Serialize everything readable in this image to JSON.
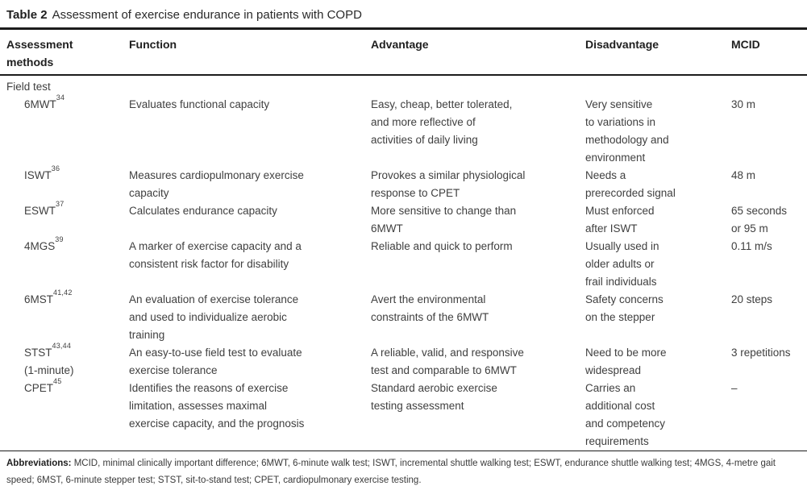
{
  "title": {
    "label": "Table 2",
    "text": "Assessment of exercise endurance in patients with COPD"
  },
  "colors": {
    "text": "#3f3f3f",
    "heading": "#1f1f1f",
    "rule": "#1c1c1c",
    "background": "#ffffff"
  },
  "table": {
    "columns": [
      {
        "id": "assessment-methods",
        "lines": [
          "Assessment",
          "methods"
        ]
      },
      {
        "id": "function",
        "lines": [
          "Function"
        ]
      },
      {
        "id": "advantage",
        "lines": [
          "Advantage"
        ]
      },
      {
        "id": "disadvantage",
        "lines": [
          "Disadvantage"
        ]
      },
      {
        "id": "mcid",
        "lines": [
          "MCID"
        ]
      }
    ],
    "section": {
      "label": "Field test"
    },
    "rows": [
      {
        "method": {
          "name": "6MWT",
          "ref": "34",
          "extra": ""
        },
        "function": [
          "Evaluates functional capacity"
        ],
        "advantage": [
          "Easy, cheap, better tolerated,",
          "and more reflective of",
          "activities of daily living"
        ],
        "disadvantage": [
          "Very sensitive",
          "to variations in",
          "methodology and",
          "environment"
        ],
        "mcid": [
          "30 m"
        ]
      },
      {
        "method": {
          "name": "ISWT",
          "ref": "36",
          "extra": ""
        },
        "function": [
          "Measures cardiopulmonary exercise",
          "capacity"
        ],
        "advantage": [
          "Provokes a similar physiological",
          "response to CPET"
        ],
        "disadvantage": [
          "Needs a",
          "prerecorded signal"
        ],
        "mcid": [
          "48 m"
        ]
      },
      {
        "method": {
          "name": "ESWT",
          "ref": "37",
          "extra": ""
        },
        "function": [
          "Calculates endurance capacity"
        ],
        "advantage": [
          "More sensitive to change than",
          "6MWT"
        ],
        "disadvantage": [
          "Must enforced",
          "after ISWT"
        ],
        "mcid": [
          "65 seconds",
          "or 95 m"
        ]
      },
      {
        "method": {
          "name": "4MGS",
          "ref": "39",
          "extra": ""
        },
        "function": [
          "A marker of exercise capacity and a",
          "consistent risk factor for disability"
        ],
        "advantage": [
          "Reliable and quick to perform"
        ],
        "disadvantage": [
          "Usually used in",
          "older adults or",
          "frail individuals"
        ],
        "mcid": [
          "0.11 m/s"
        ]
      },
      {
        "method": {
          "name": "6MST",
          "ref": "41,42",
          "extra": ""
        },
        "function": [
          "An evaluation of exercise tolerance",
          "and used to individualize aerobic",
          "training"
        ],
        "advantage": [
          "Avert the environmental",
          "constraints of the 6MWT"
        ],
        "disadvantage": [
          "Safety concerns",
          "on the stepper"
        ],
        "mcid": [
          "20 steps"
        ]
      },
      {
        "method": {
          "name": "STST",
          "ref": "43,44",
          "extra": "(1-minute)"
        },
        "function": [
          "An easy-to-use field test to evaluate",
          "exercise tolerance"
        ],
        "advantage": [
          "A reliable, valid, and responsive",
          "test and comparable to 6MWT"
        ],
        "disadvantage": [
          "Need to be more",
          "widespread"
        ],
        "mcid": [
          "3 repetitions"
        ]
      },
      {
        "method": {
          "name": "CPET",
          "ref": "45",
          "extra": ""
        },
        "function": [
          "Identifies the reasons of exercise",
          "limitation, assesses maximal",
          "exercise capacity, and the prognosis"
        ],
        "advantage": [
          "Standard aerobic exercise",
          "testing assessment"
        ],
        "disadvantage": [
          "Carries an",
          "additional cost",
          "and competency",
          "requirements"
        ],
        "mcid": [
          "–"
        ]
      }
    ]
  },
  "footer": {
    "label": "Abbreviations:",
    "text": "MCID, minimal clinically important difference; 6MWT, 6-minute walk test; ISWT, incremental shuttle walking test; ESWT, endurance shuttle walking test; 4MGS, 4-metre gait speed; 6MST, 6-minute stepper test; STST, sit-to-stand test; CPET, cardiopulmonary exercise testing."
  }
}
